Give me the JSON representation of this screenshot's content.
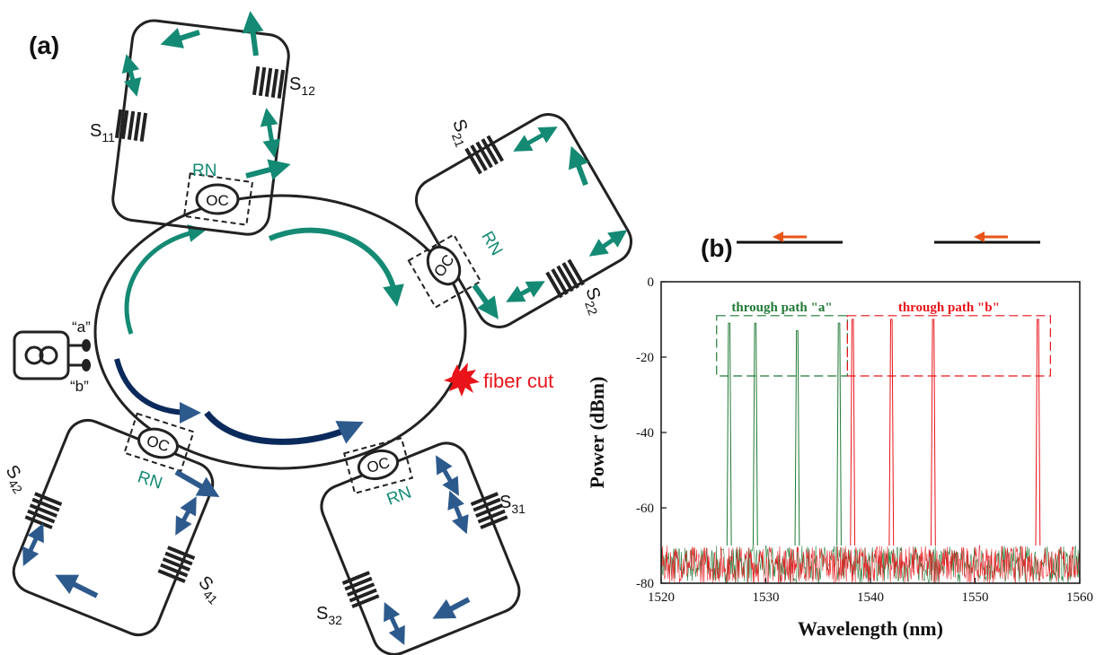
{
  "panel_labels": {
    "a": "(a)",
    "b": "(b)"
  },
  "source_ports": {
    "a": "“a”",
    "b": "“b”"
  },
  "ring_nodes": [
    {
      "label": "RN",
      "coupler": "OC",
      "sensors": [
        {
          "base": "S",
          "sub": "11"
        },
        {
          "base": "S",
          "sub": "12"
        }
      ]
    },
    {
      "label": "RN",
      "coupler": "OC",
      "sensors": [
        {
          "base": "S",
          "sub": "21"
        },
        {
          "base": "S",
          "sub": "22"
        }
      ]
    },
    {
      "label": "RN",
      "coupler": "OC",
      "sensors": [
        {
          "base": "S",
          "sub": "31"
        },
        {
          "base": "S",
          "sub": "32"
        }
      ]
    },
    {
      "label": "RN",
      "coupler": "OC",
      "sensors": [
        {
          "base": "S",
          "sub": "41"
        },
        {
          "base": "S",
          "sub": "42"
        }
      ]
    }
  ],
  "fiber_cut_label": "fiber cut",
  "colors": {
    "teal": "#148a74",
    "navy": "#0b2a5c",
    "blue_arrow": "#2d5a8c",
    "red": "#e8141a",
    "green_series": "#1f7a35",
    "orange": "#e8541a",
    "line": "#222222"
  },
  "chart_data": {
    "type": "line",
    "xlabel": "Wavelength (nm)",
    "ylabel": "Power (dBm)",
    "xlim": [
      1520,
      1560
    ],
    "ylim": [
      -80,
      0
    ],
    "x_ticks": [
      1520,
      1530,
      1540,
      1550,
      1560
    ],
    "y_ticks": [
      0,
      -20,
      -40,
      -60,
      -80
    ],
    "noise_floor": [
      -80,
      -70
    ],
    "series": [
      {
        "name": "through path \"a\"",
        "color": "#1f7a35",
        "peaks": [
          {
            "x": 1526.5,
            "y": -11
          },
          {
            "x": 1529.0,
            "y": -11
          },
          {
            "x": 1533.0,
            "y": -13
          },
          {
            "x": 1537.0,
            "y": -11
          }
        ]
      },
      {
        "name": "through path \"b\"",
        "color": "#e8141a",
        "peaks": [
          {
            "x": 1538.3,
            "y": -10
          },
          {
            "x": 1542.0,
            "y": -10
          },
          {
            "x": 1546.0,
            "y": -10
          },
          {
            "x": 1556.0,
            "y": -10
          }
        ]
      }
    ],
    "boxes": [
      {
        "series": 0,
        "x": [
          1525.3,
          1537.8
        ],
        "y": [
          -25,
          -9
        ]
      },
      {
        "series": 1,
        "x": [
          1537.8,
          1557.2
        ],
        "y": [
          -25,
          -9
        ]
      }
    ]
  }
}
